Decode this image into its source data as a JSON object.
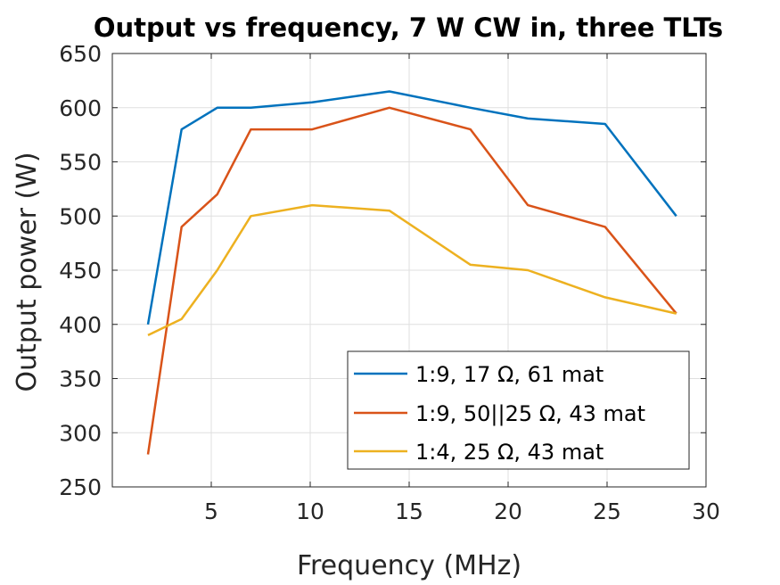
{
  "chart_data": {
    "type": "line",
    "title": "Output vs frequency, 7 W CW in, three TLTs",
    "xlabel": "Frequency (MHz)",
    "ylabel": "Output power (W)",
    "xlim": [
      0,
      30
    ],
    "ylim": [
      250,
      650
    ],
    "xticks": [
      5,
      10,
      15,
      20,
      25,
      30
    ],
    "yticks": [
      250,
      300,
      350,
      400,
      450,
      500,
      550,
      600,
      650
    ],
    "grid": true,
    "legend_position": "bottom-right",
    "series": [
      {
        "name": "1:9, 17 Ω, 61 mat",
        "color": "#0072BD",
        "x": [
          1.8,
          3.5,
          5.3,
          7.0,
          10.1,
          14.0,
          18.1,
          21.0,
          24.9,
          28.5
        ],
        "y": [
          400,
          580,
          600,
          600,
          605,
          615,
          600,
          590,
          585,
          500
        ]
      },
      {
        "name": "1:9, 50||25 Ω, 43 mat",
        "color": "#D95319",
        "x": [
          1.8,
          3.5,
          5.3,
          7.0,
          10.1,
          14.0,
          18.1,
          21.0,
          24.9,
          28.5
        ],
        "y": [
          280,
          490,
          520,
          580,
          580,
          600,
          580,
          510,
          490,
          410
        ]
      },
      {
        "name": "1:4, 25 Ω, 43 mat",
        "color": "#EDB120",
        "x": [
          1.8,
          3.5,
          5.3,
          7.0,
          10.1,
          14.0,
          18.1,
          21.0,
          24.9,
          28.5
        ],
        "y": [
          390,
          405,
          450,
          500,
          510,
          505,
          455,
          450,
          425,
          410
        ]
      }
    ]
  }
}
